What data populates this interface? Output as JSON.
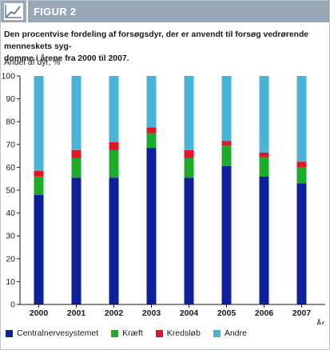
{
  "header": {
    "label": "FIGUR 2",
    "icon": "line-chart-icon"
  },
  "caption": {
    "line1": "Den procentvise fordeling af forsøgsdyr, der er anvendt til forsøg vedrørende menneskets syg-",
    "line2": "domme i årene fra 2000 til 2007."
  },
  "chart_data": {
    "type": "bar",
    "stacked": true,
    "categories": [
      "2000",
      "2001",
      "2002",
      "2003",
      "2004",
      "2005",
      "2006",
      "2007"
    ],
    "series": [
      {
        "name": "Centralnervesystemet",
        "color": "#0e1f9c",
        "values": [
          48,
          55.5,
          55.5,
          68.5,
          55.5,
          60.5,
          56,
          53
        ]
      },
      {
        "name": "Kræft",
        "color": "#1dab2b",
        "values": [
          8,
          8.5,
          12,
          6.5,
          8.5,
          9,
          8.5,
          7
        ]
      },
      {
        "name": "Kredsløb",
        "color": "#e2142a",
        "values": [
          2.5,
          3.5,
          3.5,
          2.5,
          3.5,
          2,
          2,
          2.5
        ]
      },
      {
        "name": "Andre",
        "color": "#4ab4d6",
        "values": [
          41.5,
          32.5,
          29,
          22.5,
          32.5,
          28.5,
          33.5,
          37.5
        ]
      }
    ],
    "ylabel": "Andel af dyr, %",
    "xlabel": "År",
    "ylim": [
      0,
      100
    ],
    "yticks": [
      0,
      10,
      20,
      30,
      40,
      50,
      60,
      70,
      80,
      90,
      100
    ],
    "grid": false,
    "legend_position": "bottom"
  }
}
